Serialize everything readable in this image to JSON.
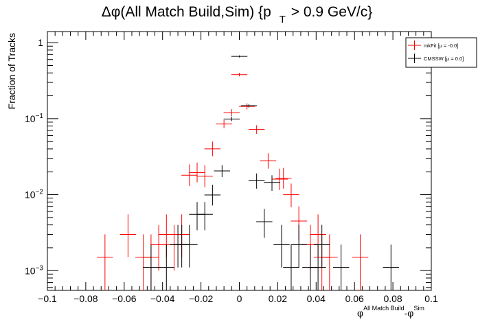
{
  "title": {
    "prefix": "Δφ(All Match Build,Sim) {p",
    "sub": "T",
    "suffix": " > 0.9 GeV/c}"
  },
  "ylabel": "Fraction of Tracks",
  "xlabel": {
    "phi1": "φ",
    "sup1": "All Match Build",
    "sep": "-φ",
    "sup2": "Sim"
  },
  "legend": [
    {
      "label": "mkFit  [μ = -0.0]",
      "color": "#ff0000"
    },
    {
      "label": "CMSSW  [μ =  0.0]",
      "color": "#000000"
    }
  ],
  "chart_data": {
    "type": "scatter",
    "title": "Δφ(All Match Build,Sim) {p T > 0.9 GeV/c}",
    "xlabel": "φ All Match Build - φ Sim",
    "ylabel": "Fraction of Tracks",
    "xlim": [
      -0.1,
      0.1
    ],
    "ylim": [
      0.00055,
      1.4
    ],
    "ylog": true,
    "grid": false,
    "legend_position": "top-right",
    "x_ticks": [
      "−0.1",
      "−0.08",
      "−0.06",
      "−0.04",
      "−0.02",
      "0",
      "0.02",
      "0.04",
      "0.06",
      "0.08",
      "0.1"
    ],
    "y_ticks": [
      {
        "base": "1",
        "exp": ""
      },
      {
        "base": "10",
        "exp": "−1"
      },
      {
        "base": "10",
        "exp": "−2"
      },
      {
        "base": "10",
        "exp": "−3"
      }
    ],
    "x_bin_halfwidth": 0.002,
    "series": [
      {
        "name": "mkFit  [μ = -0.0]",
        "color": "#ff0000",
        "points": [
          {
            "x": -0.07,
            "y": 0.0015,
            "lo": 0.00055,
            "hi": 0.003
          },
          {
            "x": -0.058,
            "y": 0.003,
            "lo": 0.0015,
            "hi": 0.0055
          },
          {
            "x": -0.05,
            "y": 0.0015,
            "lo": 0.00055,
            "hi": 0.003
          },
          {
            "x": -0.046,
            "y": 0.0015,
            "lo": 0.00055,
            "hi": 0.003
          },
          {
            "x": -0.042,
            "y": 0.0022,
            "lo": 0.001,
            "hi": 0.004
          },
          {
            "x": -0.038,
            "y": 0.003,
            "lo": 0.0015,
            "hi": 0.0055
          },
          {
            "x": -0.034,
            "y": 0.0022,
            "lo": 0.001,
            "hi": 0.004
          },
          {
            "x": -0.03,
            "y": 0.003,
            "lo": 0.0015,
            "hi": 0.0055
          },
          {
            "x": -0.026,
            "y": 0.018,
            "lo": 0.013,
            "hi": 0.025
          },
          {
            "x": -0.022,
            "y": 0.0195,
            "lo": 0.0145,
            "hi": 0.0265
          },
          {
            "x": -0.018,
            "y": 0.0175,
            "lo": 0.0125,
            "hi": 0.0245
          },
          {
            "x": -0.014,
            "y": 0.04,
            "lo": 0.032,
            "hi": 0.05
          },
          {
            "x": -0.008,
            "y": 0.085,
            "lo": 0.075,
            "hi": 0.096
          },
          {
            "x": -0.004,
            "y": 0.12,
            "lo": 0.108,
            "hi": 0.133
          },
          {
            "x": 0.0,
            "y": 0.38,
            "lo": 0.36,
            "hi": 0.4
          },
          {
            "x": 0.004,
            "y": 0.145,
            "lo": 0.132,
            "hi": 0.159
          },
          {
            "x": 0.009,
            "y": 0.072,
            "lo": 0.063,
            "hi": 0.082
          },
          {
            "x": 0.015,
            "y": 0.028,
            "lo": 0.022,
            "hi": 0.035
          },
          {
            "x": 0.021,
            "y": 0.016,
            "lo": 0.0115,
            "hi": 0.022
          },
          {
            "x": 0.023,
            "y": 0.0165,
            "lo": 0.012,
            "hi": 0.0225
          },
          {
            "x": 0.027,
            "y": 0.01,
            "lo": 0.0068,
            "hi": 0.014
          },
          {
            "x": 0.031,
            "y": 0.0045,
            "lo": 0.0025,
            "hi": 0.007
          },
          {
            "x": 0.037,
            "y": 0.0022,
            "lo": 0.001,
            "hi": 0.004
          },
          {
            "x": 0.041,
            "y": 0.003,
            "lo": 0.0015,
            "hi": 0.0055
          },
          {
            "x": 0.043,
            "y": 0.0015,
            "lo": 0.00055,
            "hi": 0.003
          },
          {
            "x": 0.047,
            "y": 0.0015,
            "lo": 0.00055,
            "hi": 0.003
          },
          {
            "x": 0.063,
            "y": 0.0015,
            "lo": 0.00055,
            "hi": 0.003
          }
        ]
      },
      {
        "name": "CMSSW  [μ =  0.0]",
        "color": "#000000",
        "points": [
          {
            "x": -0.046,
            "y": 0.0011,
            "lo": 0.00055,
            "hi": 0.0022
          },
          {
            "x": -0.038,
            "y": 0.0011,
            "lo": 0.00055,
            "hi": 0.0022
          },
          {
            "x": -0.032,
            "y": 0.0022,
            "lo": 0.0011,
            "hi": 0.004
          },
          {
            "x": -0.03,
            "y": 0.0022,
            "lo": 0.0011,
            "hi": 0.004
          },
          {
            "x": -0.026,
            "y": 0.0022,
            "lo": 0.0011,
            "hi": 0.004
          },
          {
            "x": -0.022,
            "y": 0.0055,
            "lo": 0.0034,
            "hi": 0.008
          },
          {
            "x": -0.018,
            "y": 0.0055,
            "lo": 0.0034,
            "hi": 0.008
          },
          {
            "x": -0.014,
            "y": 0.0099,
            "lo": 0.0072,
            "hi": 0.0135
          },
          {
            "x": -0.009,
            "y": 0.0205,
            "lo": 0.017,
            "hi": 0.0245
          },
          {
            "x": -0.004,
            "y": 0.099,
            "lo": 0.093,
            "hi": 0.106
          },
          {
            "x": 0.0,
            "y": 0.66,
            "lo": 0.64,
            "hi": 0.68
          },
          {
            "x": 0.005,
            "y": 0.148,
            "lo": 0.14,
            "hi": 0.156
          },
          {
            "x": 0.009,
            "y": 0.0155,
            "lo": 0.012,
            "hi": 0.019
          },
          {
            "x": 0.013,
            "y": 0.0044,
            "lo": 0.0027,
            "hi": 0.0065
          },
          {
            "x": 0.017,
            "y": 0.0145,
            "lo": 0.0112,
            "hi": 0.018
          },
          {
            "x": 0.022,
            "y": 0.0022,
            "lo": 0.0011,
            "hi": 0.004
          },
          {
            "x": 0.027,
            "y": 0.0011,
            "lo": 0.00055,
            "hi": 0.0022
          },
          {
            "x": 0.031,
            "y": 0.0022,
            "lo": 0.0011,
            "hi": 0.004
          },
          {
            "x": 0.037,
            "y": 0.0011,
            "lo": 0.00055,
            "hi": 0.0022
          },
          {
            "x": 0.041,
            "y": 0.0011,
            "lo": 0.00055,
            "hi": 0.0022
          },
          {
            "x": 0.043,
            "y": 0.0022,
            "lo": 0.0011,
            "hi": 0.004
          },
          {
            "x": 0.053,
            "y": 0.0011,
            "lo": 0.00055,
            "hi": 0.0022
          },
          {
            "x": 0.079,
            "y": 0.0011,
            "lo": 0.00055,
            "hi": 0.0022
          }
        ]
      }
    ]
  }
}
